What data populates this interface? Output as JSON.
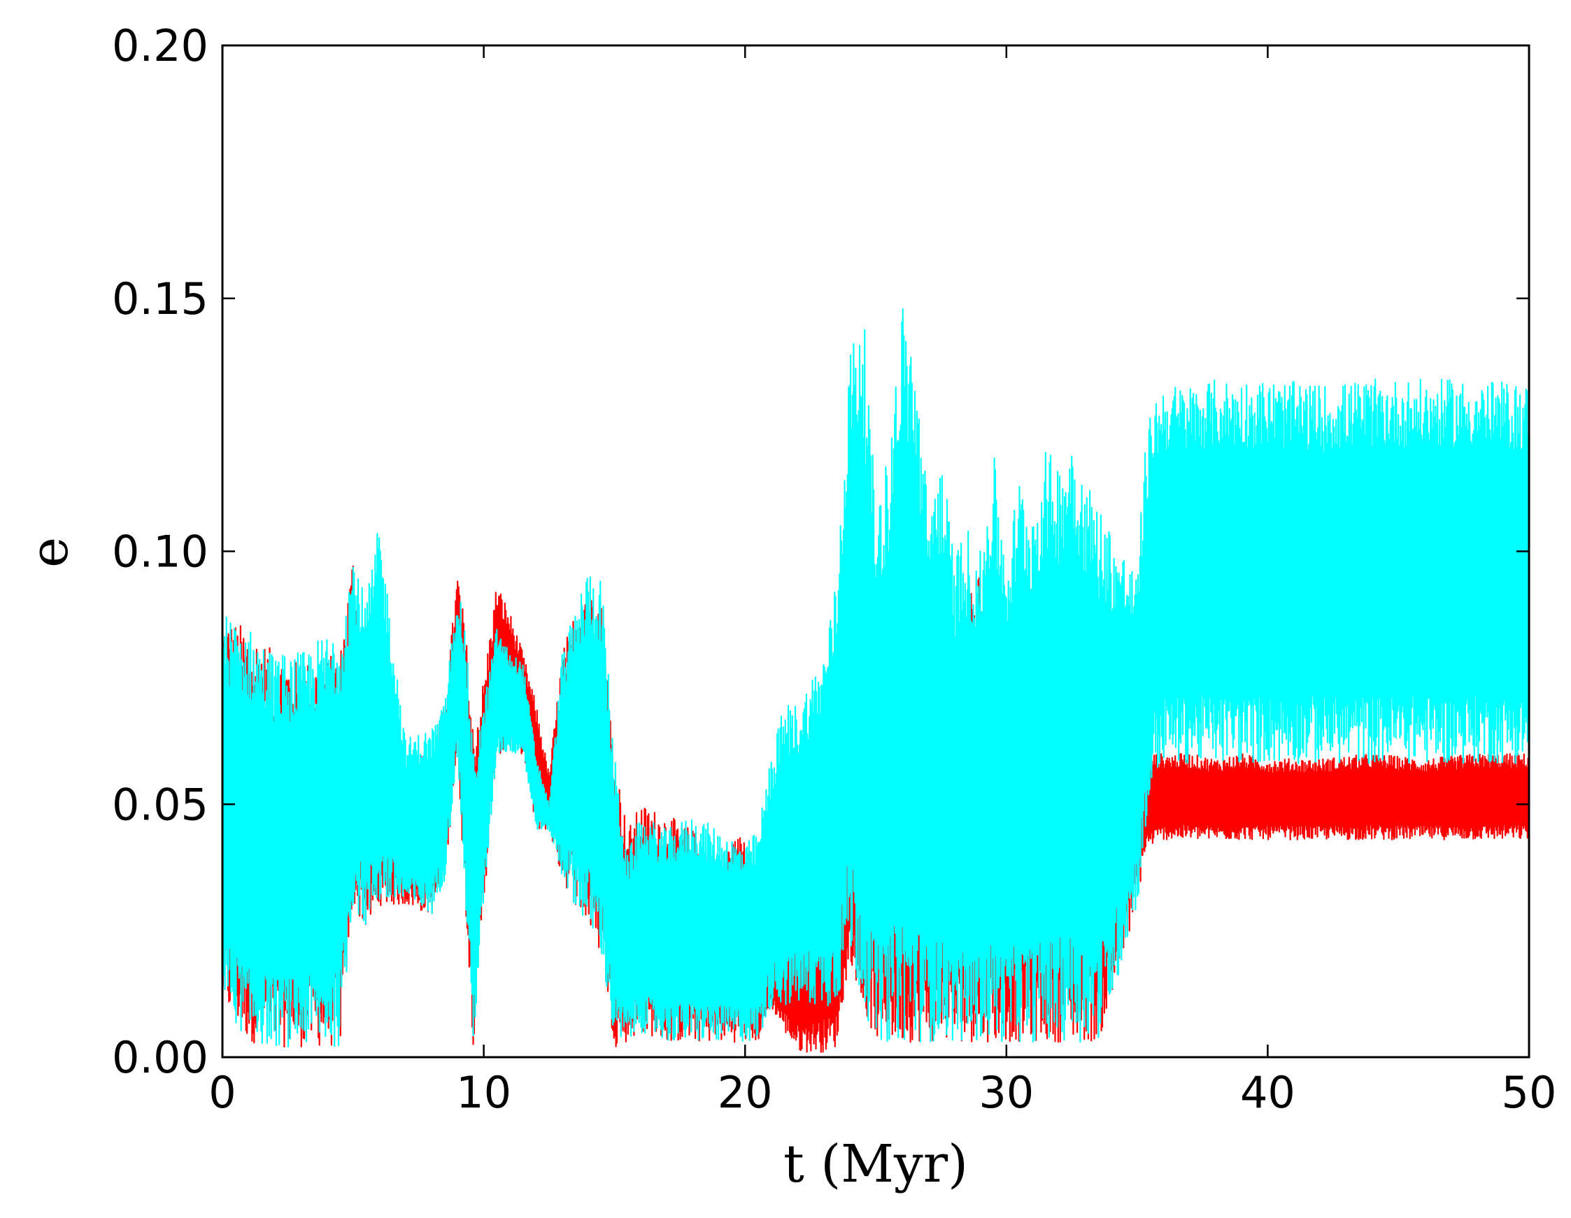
{
  "chart_data": {
    "type": "line",
    "title": "",
    "xlabel": "t (Myr)",
    "ylabel": "e",
    "xlim": [
      0,
      50
    ],
    "ylim": [
      0,
      0.2
    ],
    "xticks": [
      0,
      10,
      20,
      30,
      40,
      50
    ],
    "xtick_labels": [
      "0",
      "10",
      "20",
      "30",
      "40",
      "50"
    ],
    "yticks": [
      0,
      0.05,
      0.1,
      0.15,
      0.2
    ],
    "ytick_labels": [
      "0.00",
      "0.05",
      "0.10",
      "0.15",
      "0.20"
    ],
    "grid": false,
    "legend": "none",
    "series": [
      {
        "color": "#ff0000",
        "x": [
          0,
          1,
          2,
          3,
          4.5,
          5,
          5.5,
          6,
          7,
          8,
          8.5,
          9,
          9.3,
          9.6,
          10,
          10.5,
          11,
          11.5,
          12,
          12.5,
          13,
          14,
          14.5,
          15,
          15.5,
          16,
          17,
          18,
          19,
          20,
          20.5,
          21,
          21.5,
          22,
          22.5,
          23,
          23.5,
          24,
          24.5,
          25,
          25.5,
          26,
          26.5,
          27,
          27.5,
          28,
          28.5,
          29,
          29.5,
          30,
          30.5,
          31,
          31.5,
          32,
          32.5,
          33,
          33.5,
          34,
          34.5,
          35,
          35.3,
          35.6,
          36,
          37,
          38,
          39,
          40,
          42,
          44,
          46,
          48,
          50
        ],
        "upper": [
          0.087,
          0.085,
          0.08,
          0.078,
          0.08,
          0.1,
          0.075,
          0.065,
          0.06,
          0.06,
          0.07,
          0.096,
          0.085,
          0.065,
          0.075,
          0.094,
          0.088,
          0.08,
          0.07,
          0.056,
          0.08,
          0.097,
          0.09,
          0.06,
          0.045,
          0.05,
          0.048,
          0.045,
          0.04,
          0.045,
          0.035,
          0.024,
          0.03,
          0.032,
          0.035,
          0.038,
          0.04,
          0.06,
          0.065,
          0.088,
          0.08,
          0.085,
          0.075,
          0.078,
          0.085,
          0.08,
          0.09,
          0.096,
          0.09,
          0.09,
          0.085,
          0.09,
          0.088,
          0.085,
          0.09,
          0.09,
          0.085,
          0.08,
          0.075,
          0.07,
          0.065,
          0.06,
          0.06,
          0.06,
          0.059,
          0.06,
          0.059,
          0.059,
          0.06,
          0.059,
          0.06,
          0.06
        ],
        "lower": [
          0.01,
          0.003,
          0.002,
          0.002,
          0.002,
          0.03,
          0.025,
          0.03,
          0.03,
          0.028,
          0.035,
          0.06,
          0.03,
          0.002,
          0.03,
          0.06,
          0.06,
          0.06,
          0.045,
          0.045,
          0.035,
          0.025,
          0.02,
          0.002,
          0.003,
          0.005,
          0.003,
          0.003,
          0.003,
          0.003,
          0.003,
          0.01,
          0.005,
          0.001,
          0.001,
          0.001,
          0.002,
          0.02,
          0.01,
          0.003,
          0.003,
          0.003,
          0.003,
          0.003,
          0.003,
          0.003,
          0.003,
          0.003,
          0.003,
          0.003,
          0.003,
          0.003,
          0.003,
          0.003,
          0.003,
          0.003,
          0.003,
          0.01,
          0.02,
          0.03,
          0.04,
          0.042,
          0.043,
          0.043,
          0.043,
          0.043,
          0.043,
          0.043,
          0.043,
          0.043,
          0.043,
          0.043
        ]
      },
      {
        "color": "#00ffff",
        "x": [
          0,
          1,
          2,
          3,
          4.5,
          5,
          5.5,
          6,
          7,
          8,
          8.5,
          9,
          9.3,
          9.6,
          10,
          10.5,
          11,
          11.5,
          12,
          12.5,
          13,
          14,
          14.5,
          15,
          15.5,
          16,
          17,
          18,
          19,
          20,
          20.5,
          21,
          21.5,
          22,
          22.5,
          23,
          23.5,
          24,
          24.5,
          25,
          25.5,
          26,
          26.5,
          27,
          27.5,
          28,
          28.5,
          29,
          29.5,
          30,
          30.5,
          31,
          31.5,
          32,
          32.5,
          33,
          33.5,
          34,
          34.5,
          35,
          35.3,
          35.6,
          36,
          37,
          38,
          39,
          40,
          42,
          44,
          46,
          48,
          50
        ],
        "upper": [
          0.088,
          0.085,
          0.08,
          0.08,
          0.086,
          0.1,
          0.09,
          0.106,
          0.063,
          0.065,
          0.07,
          0.093,
          0.085,
          0.06,
          0.07,
          0.085,
          0.08,
          0.078,
          0.06,
          0.05,
          0.08,
          0.097,
          0.095,
          0.06,
          0.04,
          0.048,
          0.045,
          0.048,
          0.045,
          0.042,
          0.045,
          0.06,
          0.07,
          0.07,
          0.075,
          0.08,
          0.095,
          0.14,
          0.15,
          0.11,
          0.12,
          0.15,
          0.14,
          0.11,
          0.12,
          0.1,
          0.105,
          0.1,
          0.12,
          0.1,
          0.115,
          0.11,
          0.12,
          0.118,
          0.125,
          0.115,
          0.11,
          0.105,
          0.1,
          0.095,
          0.12,
          0.13,
          0.133,
          0.133,
          0.134,
          0.134,
          0.134,
          0.133,
          0.134,
          0.134,
          0.134,
          0.133
        ],
        "lower": [
          0.01,
          0.003,
          0.002,
          0.002,
          0.002,
          0.03,
          0.025,
          0.03,
          0.03,
          0.028,
          0.035,
          0.06,
          0.03,
          0.002,
          0.03,
          0.06,
          0.06,
          0.06,
          0.045,
          0.045,
          0.035,
          0.025,
          0.02,
          0.002,
          0.003,
          0.005,
          0.003,
          0.003,
          0.003,
          0.003,
          0.003,
          0.01,
          0.01,
          0.01,
          0.01,
          0.01,
          0.01,
          0.02,
          0.01,
          0.003,
          0.003,
          0.003,
          0.003,
          0.003,
          0.003,
          0.003,
          0.003,
          0.003,
          0.003,
          0.003,
          0.003,
          0.003,
          0.003,
          0.003,
          0.003,
          0.003,
          0.003,
          0.01,
          0.02,
          0.03,
          0.04,
          0.055,
          0.058,
          0.058,
          0.058,
          0.058,
          0.058,
          0.058,
          0.058,
          0.058,
          0.058,
          0.058
        ]
      }
    ]
  }
}
